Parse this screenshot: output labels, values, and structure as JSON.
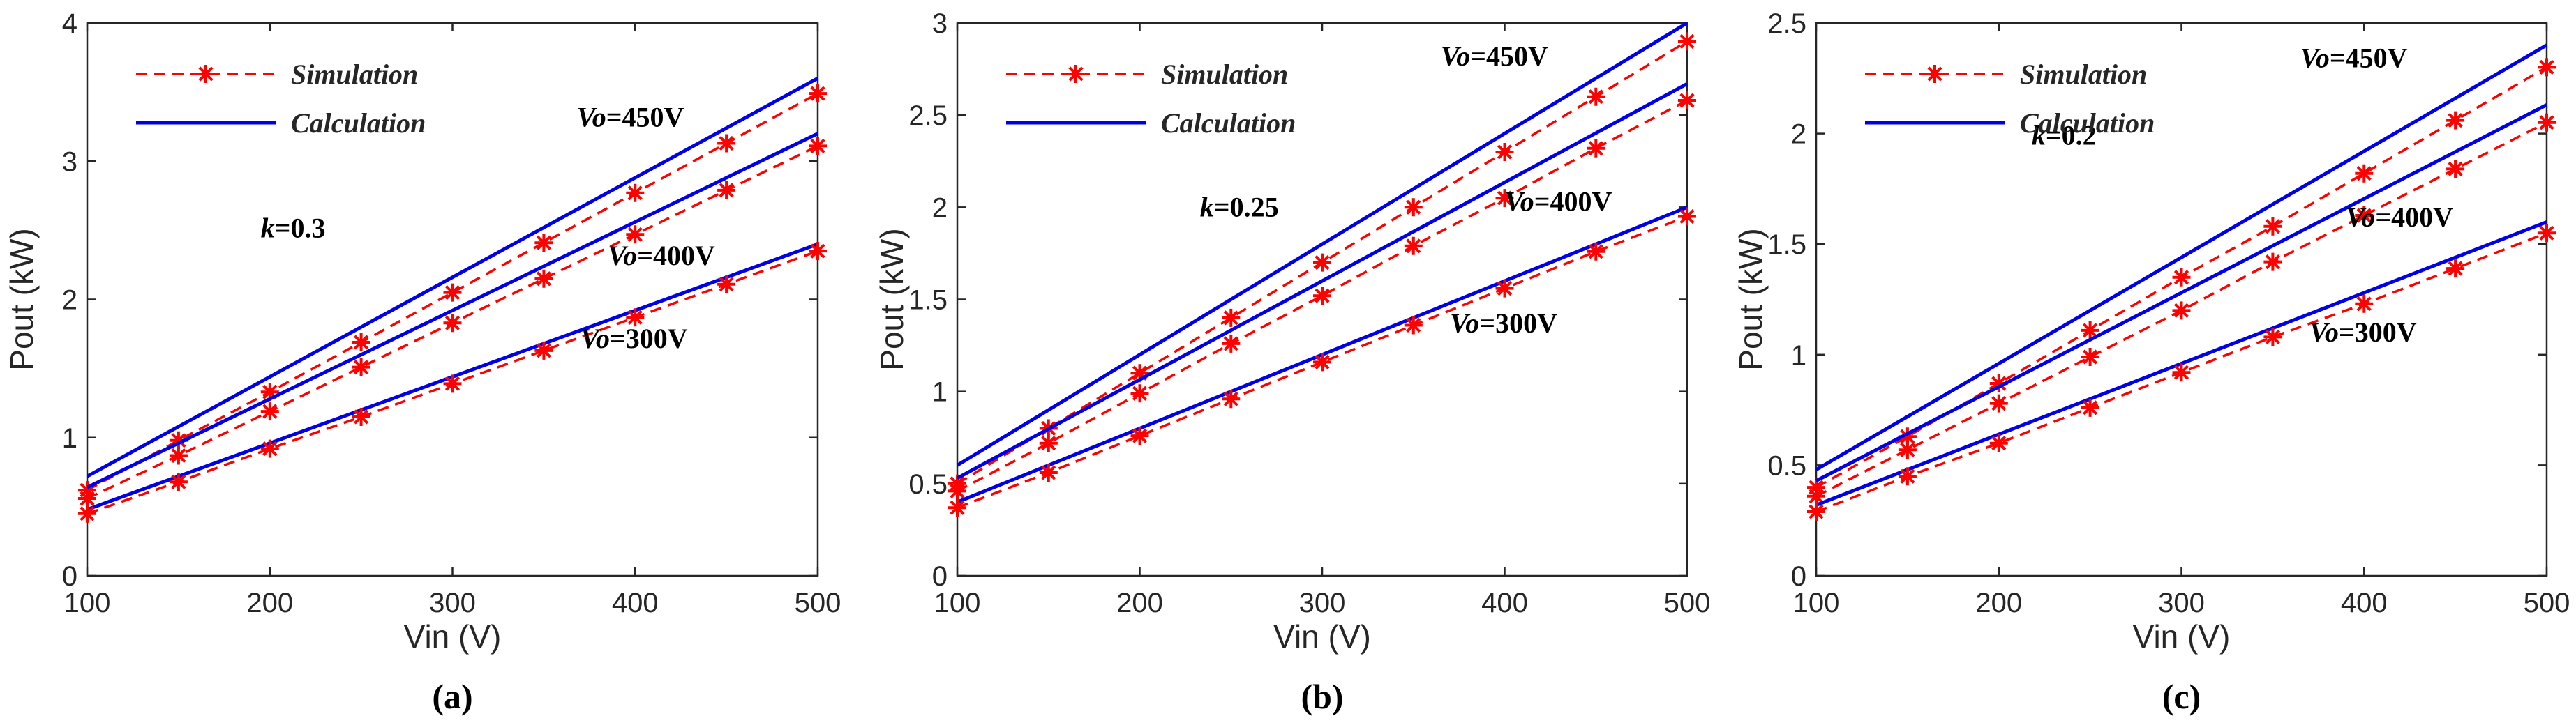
{
  "chart_data": [
    {
      "type": "line",
      "panel_label": "(a)",
      "k_label": "k",
      "k_value": "=0.3",
      "xlabel": "Vin (V)",
      "ylabel": "Pout (kW)",
      "xlim": [
        100,
        500
      ],
      "ylim": [
        0,
        4
      ],
      "xticks": [
        100,
        200,
        300,
        400,
        500
      ],
      "yticks": [
        0,
        1,
        2,
        3,
        4
      ],
      "legend": [
        "Simulation",
        "Calculation"
      ],
      "legend_position": "top-left",
      "calc_x": [
        100,
        500
      ],
      "sim_x": [
        100,
        150,
        200,
        250,
        300,
        350,
        400,
        450,
        500
      ],
      "series": [
        {
          "name": "Vo=450V",
          "label_italic": "Vo",
          "label_rest": "=450V",
          "calc": [
            0.72,
            3.6
          ],
          "sim": [
            0.62,
            0.98,
            1.33,
            1.69,
            2.05,
            2.41,
            2.77,
            3.13,
            3.49
          ]
        },
        {
          "name": "Vo=400V",
          "label_italic": "Vo",
          "label_rest": "=400V",
          "calc": [
            0.64,
            3.2
          ],
          "sim": [
            0.56,
            0.87,
            1.19,
            1.51,
            1.83,
            2.15,
            2.47,
            2.79,
            3.11
          ]
        },
        {
          "name": "Vo=300V",
          "label_italic": "Vo",
          "label_rest": "=300V",
          "calc": [
            0.48,
            2.4
          ],
          "sim": [
            0.45,
            0.68,
            0.92,
            1.15,
            1.39,
            1.63,
            1.87,
            2.11,
            2.35
          ]
        }
      ]
    },
    {
      "type": "line",
      "panel_label": "(b)",
      "k_label": "k",
      "k_value": "=0.25",
      "xlabel": "Vin (V)",
      "ylabel": "Pout (kW)",
      "xlim": [
        100,
        500
      ],
      "ylim": [
        0,
        3
      ],
      "xticks": [
        100,
        200,
        300,
        400,
        500
      ],
      "yticks": [
        0,
        0.5,
        1,
        1.5,
        2,
        2.5,
        3
      ],
      "legend": [
        "Simulation",
        "Calculation"
      ],
      "legend_position": "top-left",
      "calc_x": [
        100,
        500
      ],
      "sim_x": [
        100,
        150,
        200,
        250,
        300,
        350,
        400,
        450,
        500
      ],
      "series": [
        {
          "name": "Vo=450V",
          "label_italic": "Vo",
          "label_rest": "=450V",
          "calc": [
            0.6,
            3.0
          ],
          "sim": [
            0.5,
            0.8,
            1.1,
            1.4,
            1.7,
            2.0,
            2.3,
            2.6,
            2.9
          ]
        },
        {
          "name": "Vo=400V",
          "label_italic": "Vo",
          "label_rest": "=400V",
          "calc": [
            0.53,
            2.67
          ],
          "sim": [
            0.46,
            0.72,
            0.99,
            1.26,
            1.52,
            1.79,
            2.05,
            2.32,
            2.58
          ]
        },
        {
          "name": "Vo=300V",
          "label_italic": "Vo",
          "label_rest": "=300V",
          "calc": [
            0.4,
            2.0
          ],
          "sim": [
            0.37,
            0.56,
            0.76,
            0.96,
            1.16,
            1.36,
            1.56,
            1.76,
            1.95
          ]
        }
      ]
    },
    {
      "type": "line",
      "panel_label": "(c)",
      "k_label": "k",
      "k_value": "=0.2",
      "xlabel": "Vin (V)",
      "ylabel": "Pout (kW)",
      "xlim": [
        100,
        500
      ],
      "ylim": [
        0,
        2.5
      ],
      "xticks": [
        100,
        200,
        300,
        400,
        500
      ],
      "yticks": [
        0,
        0.5,
        1,
        1.5,
        2,
        2.5
      ],
      "legend": [
        "Simulation",
        "Calculation"
      ],
      "legend_position": "top-left",
      "calc_x": [
        100,
        500
      ],
      "sim_x": [
        100,
        150,
        200,
        250,
        300,
        350,
        400,
        450,
        500
      ],
      "series": [
        {
          "name": "Vo=450V",
          "label_italic": "Vo",
          "label_rest": "=450V",
          "calc": [
            0.48,
            2.4
          ],
          "sim": [
            0.4,
            0.63,
            0.87,
            1.11,
            1.35,
            1.58,
            1.82,
            2.06,
            2.3
          ]
        },
        {
          "name": "Vo=400V",
          "label_italic": "Vo",
          "label_rest": "=400V",
          "calc": [
            0.43,
            2.13
          ],
          "sim": [
            0.36,
            0.57,
            0.78,
            0.99,
            1.2,
            1.42,
            1.63,
            1.84,
            2.05
          ]
        },
        {
          "name": "Vo=300V",
          "label_italic": "Vo",
          "label_rest": "=300V",
          "calc": [
            0.32,
            1.6
          ],
          "sim": [
            0.29,
            0.45,
            0.6,
            0.76,
            0.92,
            1.08,
            1.23,
            1.39,
            1.55
          ]
        }
      ]
    }
  ],
  "colors": {
    "simulation": "#ff0000",
    "calculation": "#0000e6",
    "axis": "#262626"
  }
}
